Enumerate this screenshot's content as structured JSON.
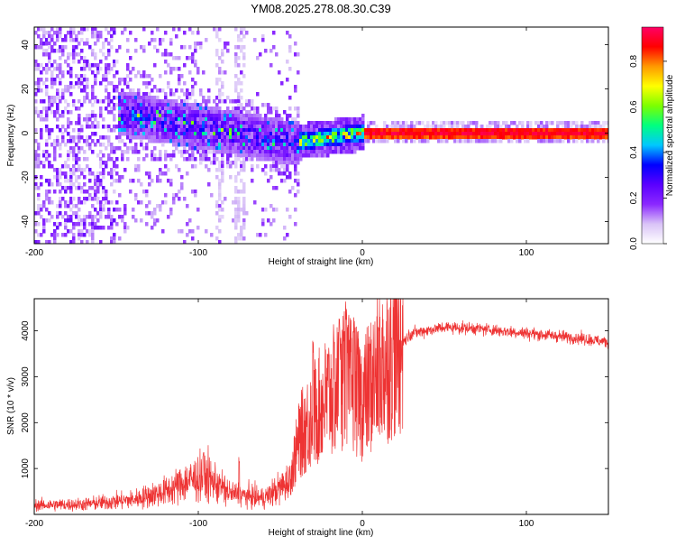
{
  "title": "YM08.2025.278.08.30.C39",
  "chart_data": [
    {
      "type": "heatmap",
      "title": "YM08.2025.278.08.30.C39",
      "xlabel": "Height of straight line (km)",
      "ylabel": "Frequency (Hz)",
      "xlim": [
        -200,
        150
      ],
      "ylim": [
        -50,
        48
      ],
      "xticks": [
        -200,
        -100,
        0,
        100
      ],
      "yticks": [
        -40,
        -20,
        0,
        20,
        40
      ],
      "colorbar": {
        "label": "Normalized spectral amplitude",
        "range": [
          0.0,
          0.95
        ],
        "ticks": [
          0.0,
          0.2,
          0.4,
          0.6,
          0.8
        ],
        "tick_labels": [
          "0.0",
          "0.2",
          "0.4",
          "0.6",
          "0.8"
        ],
        "colors": [
          "#ffffff",
          "#d9c3f7",
          "#8b28ff",
          "#5a00ff",
          "#0000ff",
          "#00c8ff",
          "#00ff80",
          "#7cff00",
          "#ffff00",
          "#ff9900",
          "#ff0000",
          "#ff0066"
        ]
      },
      "bands": [
        {
          "x": [
            -200,
            -150
          ],
          "center": 0,
          "spread": 48,
          "amplitude": "low, broadband noise"
        },
        {
          "x": [
            -150,
            -40
          ],
          "center_start": 10,
          "center_end": -4,
          "half_width": 10,
          "amplitude": "0.1-0.4"
        },
        {
          "x": [
            -40,
            0
          ],
          "center_start": -3,
          "center_end": 1,
          "half_width": 4,
          "amplitude": "0.3-0.9"
        },
        {
          "x": [
            0,
            150
          ],
          "center": 1,
          "half_width": 2.5,
          "amplitude": "0.8-0.95"
        }
      ]
    },
    {
      "type": "line",
      "xlabel": "Height of straight line (km)",
      "ylabel": "SNR (10 * v/v)",
      "xlim": [
        -200,
        150
      ],
      "ylim": [
        0,
        4700
      ],
      "xticks": [
        -200,
        -100,
        0,
        100
      ],
      "yticks": [
        1000,
        2000,
        3000,
        4000
      ],
      "color": "#ee3333",
      "series": [
        {
          "name": "SNR",
          "envelope_points": [
            {
              "x": -200,
              "y": 200
            },
            {
              "x": -170,
              "y": 220
            },
            {
              "x": -140,
              "y": 320
            },
            {
              "x": -120,
              "y": 500
            },
            {
              "x": -105,
              "y": 750
            },
            {
              "x": -95,
              "y": 820
            },
            {
              "x": -80,
              "y": 450
            },
            {
              "x": -60,
              "y": 350
            },
            {
              "x": -45,
              "y": 700
            },
            {
              "x": -38,
              "y": 1700
            },
            {
              "x": -30,
              "y": 2200
            },
            {
              "x": -20,
              "y": 2600
            },
            {
              "x": -10,
              "y": 2900
            },
            {
              "x": 0,
              "y": 2500
            },
            {
              "x": 10,
              "y": 3100
            },
            {
              "x": 20,
              "y": 3600
            },
            {
              "x": 30,
              "y": 3950
            },
            {
              "x": 50,
              "y": 4080
            },
            {
              "x": 70,
              "y": 4050
            },
            {
              "x": 100,
              "y": 3950
            },
            {
              "x": 130,
              "y": 3850
            },
            {
              "x": 150,
              "y": 3750
            }
          ],
          "peaks": [
            {
              "x": -97,
              "y": 1350
            },
            {
              "x": -75,
              "y": 1250
            },
            {
              "x": -30,
              "y": 3800
            },
            {
              "x": -14,
              "y": 4300
            },
            {
              "x": -10,
              "y": 4700
            },
            {
              "x": -5,
              "y": 4450
            },
            {
              "x": 10,
              "y": 4200
            }
          ]
        }
      ]
    }
  ]
}
